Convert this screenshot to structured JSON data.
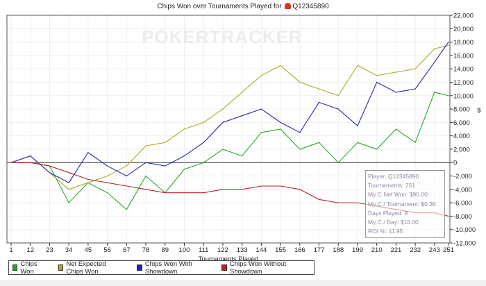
{
  "chart_data": {
    "type": "line",
    "title": "Chips Won over Tournaments Played for",
    "player": "Q12345890",
    "xlabel": "Tournaments Played",
    "ylabel": "$",
    "xlim": [
      1,
      251
    ],
    "ylim": [
      -12000,
      22000
    ],
    "grid": true,
    "legend_placement": "bottom",
    "x_ticks": [
      1,
      12,
      23,
      34,
      45,
      56,
      67,
      78,
      89,
      100,
      111,
      122,
      133,
      144,
      155,
      166,
      177,
      188,
      199,
      210,
      221,
      232,
      243,
      251
    ],
    "y_ticks": [
      22000,
      20000,
      18000,
      16000,
      14000,
      12000,
      10000,
      8000,
      6000,
      4000,
      2000,
      0,
      -2000,
      -4000,
      -6000,
      -8000,
      -10000,
      -12000
    ],
    "y_tick_labels": [
      "22,000",
      "20,000",
      "18,000",
      "16,000",
      "14,000",
      "12,000",
      "10,000",
      "8,000",
      "6,000",
      "4,000",
      "2,000",
      "0",
      "-2,000",
      "-4,000",
      "-6,000",
      "-8,000",
      "-10,000",
      "-12,000"
    ],
    "x": [
      1,
      12,
      23,
      34,
      45,
      56,
      67,
      78,
      89,
      100,
      111,
      122,
      133,
      144,
      155,
      166,
      177,
      188,
      199,
      210,
      221,
      232,
      243,
      251
    ],
    "series": [
      {
        "name": "Chips Won",
        "color": "#22aa22",
        "values": [
          0,
          0,
          -500,
          -6000,
          -3000,
          -4500,
          -7000,
          -2000,
          -4500,
          -1000,
          0,
          2000,
          1000,
          4500,
          5000,
          2000,
          3000,
          0,
          3000,
          2000,
          5000,
          3000,
          10500,
          10000
        ]
      },
      {
        "name": "Net Expected Chips Won",
        "color": "#aaaa22",
        "values": [
          0,
          1000,
          -1500,
          -4000,
          -3000,
          -2000,
          -500,
          2500,
          3000,
          5000,
          6000,
          8000,
          10500,
          13000,
          14500,
          12000,
          11000,
          10000,
          14500,
          13000,
          13500,
          14000,
          17000,
          17500
        ]
      },
      {
        "name": "Chips Won With Showdown",
        "color": "#2222bb",
        "values": [
          0,
          1000,
          -1500,
          -3000,
          1500,
          -500,
          -2000,
          0,
          -500,
          1000,
          3000,
          6000,
          7000,
          8000,
          6000,
          4500,
          9000,
          8000,
          5500,
          12000,
          10500,
          11000,
          15000,
          18000
        ]
      },
      {
        "name": "Chips Won Without Showdown",
        "color": "#bb2222",
        "values": [
          0,
          0,
          -500,
          -1500,
          -2500,
          -3000,
          -3500,
          -4000,
          -4500,
          -4500,
          -4500,
          -4000,
          -4000,
          -3500,
          -3500,
          -4000,
          -5500,
          -6000,
          -6000,
          -6500,
          -7000,
          -7500,
          -7500,
          -8000
        ]
      }
    ]
  },
  "watermark": "POKERTRACKER",
  "tooltip": [
    "Player: Q12345890",
    "Tournaments: 251",
    "My C Net Won: $90.00",
    "My C / Tournament: $0.36",
    "Days Played: 9",
    "My C / Day: $10.00",
    "ROI %: 11.95"
  ]
}
